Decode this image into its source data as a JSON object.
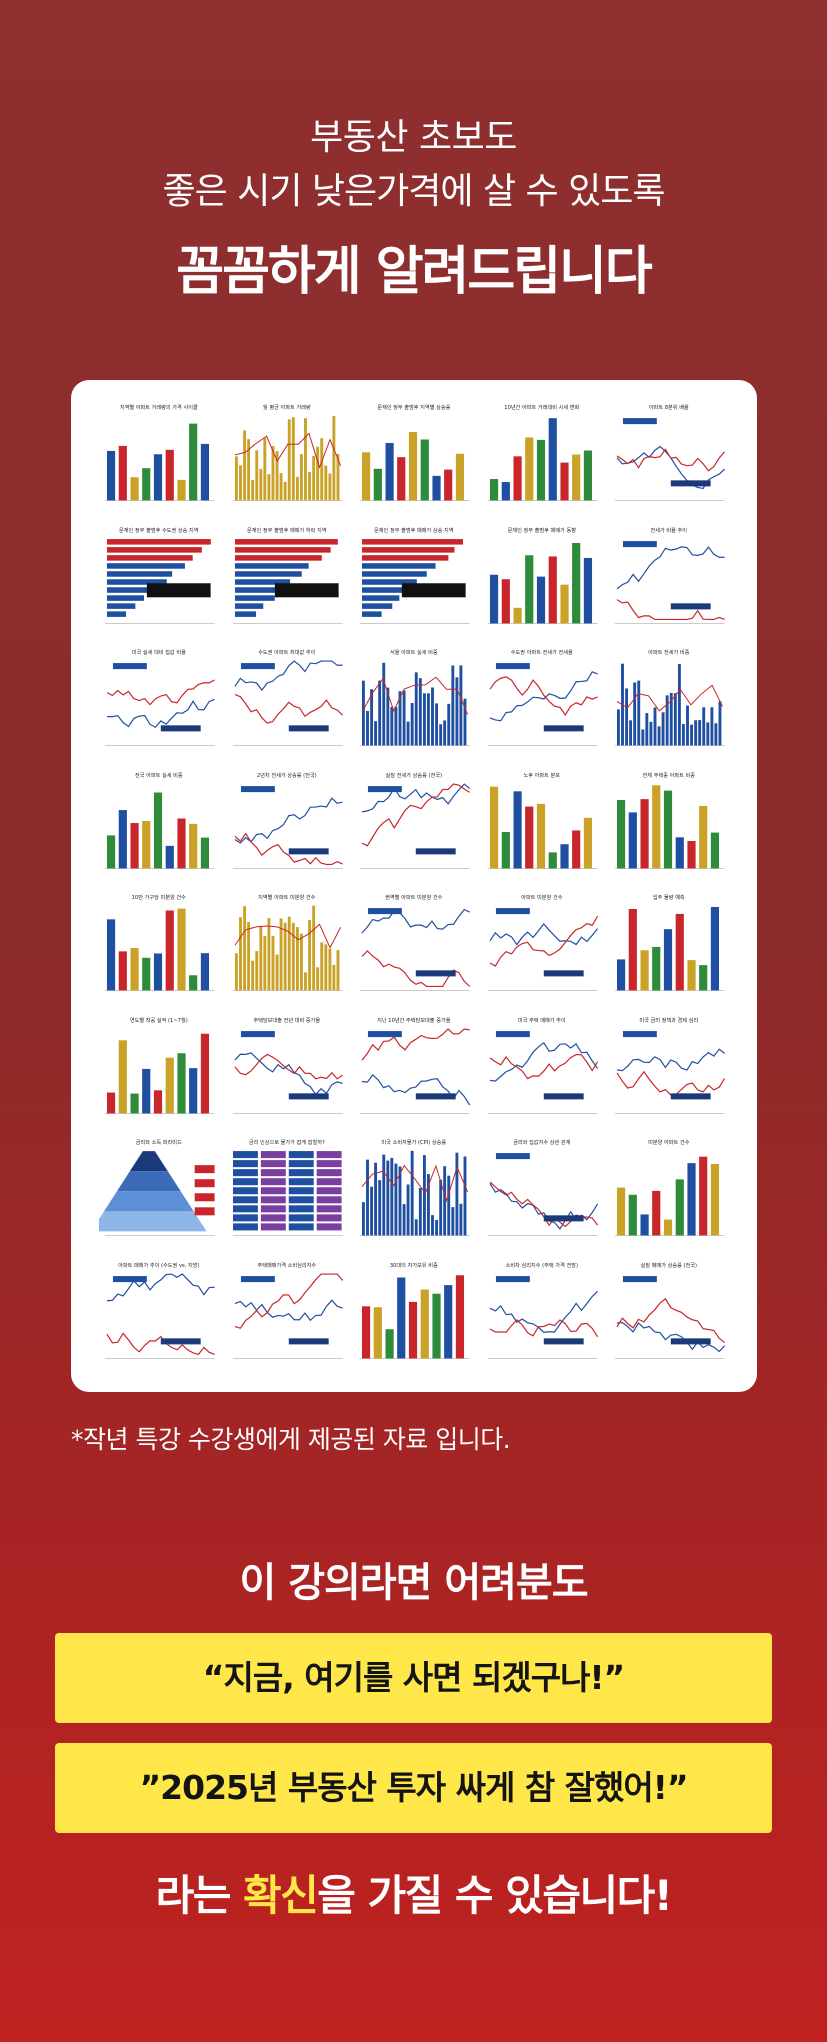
{
  "hero": {
    "line1": "부동산 초보도",
    "line2": "좋은 시기 낮은가격에 살 수 있도록",
    "line3": "꼼꼼하게 알려드립니다"
  },
  "colors": {
    "background": "#8f2f2f",
    "highlight": "#ffe649",
    "chart_blue": "#1f4fa0",
    "chart_red": "#c8262a",
    "chart_gold": "#c9a227",
    "chart_green": "#2e8b3a"
  },
  "thumbnails": [
    {
      "title": "지역별 아파트 거래량의 가격 사이클",
      "kind": "bar"
    },
    {
      "title": "월 평균 아파트 거래량",
      "kind": "dense"
    },
    {
      "title": "문재인 정부 출범후 지역별 상승률",
      "kind": "bar"
    },
    {
      "title": "10년간 아파트 거래대비 시세 변화",
      "kind": "bar"
    },
    {
      "title": "아파트 8분위 배율",
      "kind": "line"
    },
    {
      "title": "문재인 정부 출범후 수도권 상승 지역",
      "kind": "hbar"
    },
    {
      "title": "문재인 정부 출범후 매매가 하락 지역",
      "kind": "hbar"
    },
    {
      "title": "문재인 정부 출범후 매매가 상승 지역",
      "kind": "hbar"
    },
    {
      "title": "문재인 정부 출범후 매매가 동향",
      "kind": "bar"
    },
    {
      "title": "전세가 비율 추이",
      "kind": "line"
    },
    {
      "title": "미국 실세 대비 집값 비율",
      "kind": "line"
    },
    {
      "title": "수도권 아파트 최대값 추이",
      "kind": "line"
    },
    {
      "title": "서울 아파트 실세 비중",
      "kind": "dense"
    },
    {
      "title": "수도권 아파트 전세가 전세율",
      "kind": "line"
    },
    {
      "title": "아파트 전세가 비중",
      "kind": "dense"
    },
    {
      "title": "전국 아파트 실세 비중",
      "kind": "bar"
    },
    {
      "title": "2년차 전세가 상승률 (전국)",
      "kind": "line"
    },
    {
      "title": "실질 전세가 상승률 (전국)",
      "kind": "line"
    },
    {
      "title": "노후 아파트 분포",
      "kind": "bar"
    },
    {
      "title": "전체 주택중 아파트 비중",
      "kind": "bar"
    },
    {
      "title": "10만 가구당 미분양 건수",
      "kind": "bar"
    },
    {
      "title": "지역별 아파트 미분양 건수",
      "kind": "dense"
    },
    {
      "title": "권역별 아파트 미분양 건수",
      "kind": "line"
    },
    {
      "title": "아파트 미분양 건수",
      "kind": "line"
    },
    {
      "title": "입주 물량 예측",
      "kind": "bar"
    },
    {
      "title": "연도별 착공 실적 (1~7월)",
      "kind": "bar"
    },
    {
      "title": "주택담보대출 전년 대비 증가율",
      "kind": "line"
    },
    {
      "title": "지난 10년간 주택담보대출 증가율",
      "kind": "line"
    },
    {
      "title": "미국 주택 매매가 추이",
      "kind": "line"
    },
    {
      "title": "미국 금리 정책과 경제 심리",
      "kind": "line"
    },
    {
      "title": "금리와 소득 피라미드",
      "kind": "pyramid"
    },
    {
      "title": "금리 인상으로 물가가 잡게 잡힐까?",
      "kind": "table"
    },
    {
      "title": "미국 소비자물가 (CPI) 상승률",
      "kind": "dense"
    },
    {
      "title": "금리와 집값지수 상관 관계",
      "kind": "line"
    },
    {
      "title": "미분양 아파트 건수",
      "kind": "bar"
    },
    {
      "title": "아파트 매매가 추이 (수도권 vs. 지방)",
      "kind": "line"
    },
    {
      "title": "주택매매가격 소비심리지수",
      "kind": "line"
    },
    {
      "title": "30대의 자가보유 비중",
      "kind": "bar"
    },
    {
      "title": "소비자 심리지수 (주택 가격 전망)",
      "kind": "line"
    },
    {
      "title": "실질 매매가 상승률 (전국)",
      "kind": "line"
    }
  ],
  "note": "*작년 특강 수강생에게 제공된 자료 입니다.",
  "section": {
    "title": "이 강의라면 어려분도",
    "quote1": "“지금, 여기를 사면 되겠구나!”",
    "quote2": "”2025년 부동산 투자 싸게 참 잘했어!”"
  },
  "closing": {
    "before": "라는 ",
    "highlight": "확신",
    "after": "을 가질 수 있습니다!"
  }
}
